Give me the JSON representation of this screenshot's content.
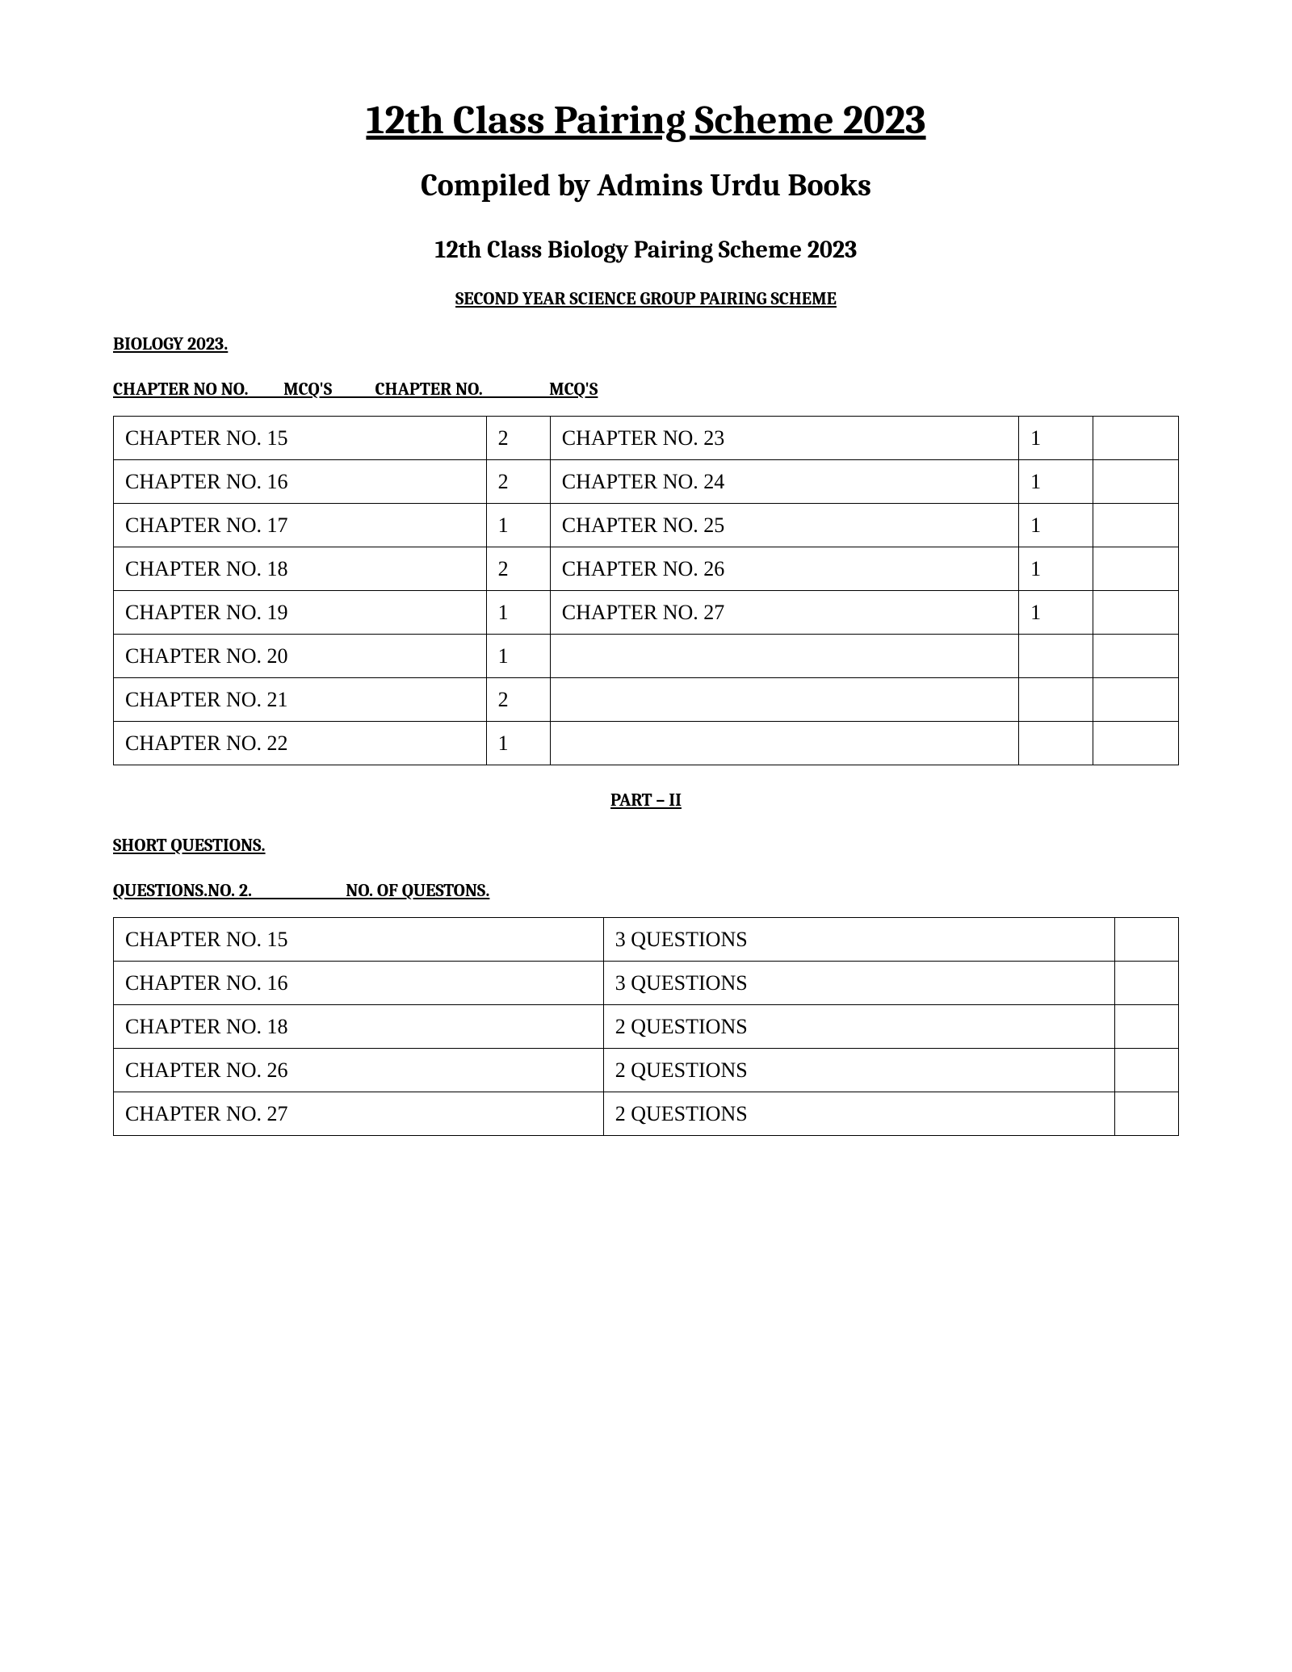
{
  "header": {
    "main_title": "12th Class Pairing Scheme 2023",
    "compiled_by": "Compiled by Admins Urdu Books",
    "subject_title": "12th Class Biology Pairing Scheme 2023",
    "group_title": "SECOND YEAR SCIENCE GROUP PAIRING SCHEME",
    "subject_year": "BIOLOGY   2023.",
    "col_header": "CHAPTER NO NO.         MCQ'S           CHAPTER NO.                 MCQ'S"
  },
  "mcq_table": {
    "rows": [
      {
        "c1": "CHAPTER NO. 15",
        "c2": "2",
        "c3": "CHAPTER NO. 23",
        "c4": "1",
        "c5": ""
      },
      {
        "c1": "CHAPTER NO. 16",
        "c2": "2",
        "c3": "CHAPTER NO. 24",
        "c4": "1",
        "c5": ""
      },
      {
        "c1": "CHAPTER NO. 17",
        "c2": "1",
        "c3": "CHAPTER NO. 25",
        "c4": "1",
        "c5": ""
      },
      {
        "c1": "CHAPTER NO. 18",
        "c2": "2",
        "c3": "CHAPTER NO. 26",
        "c4": "1",
        "c5": ""
      },
      {
        "c1": "CHAPTER NO. 19",
        "c2": "1",
        "c3": "CHAPTER NO. 27",
        "c4": "1",
        "c5": ""
      },
      {
        "c1": "CHAPTER NO. 20",
        "c2": "1",
        "c3": "",
        "c4": "",
        "c5": ""
      },
      {
        "c1": "CHAPTER NO. 21",
        "c2": "2",
        "c3": "",
        "c4": "",
        "c5": ""
      },
      {
        "c1": "CHAPTER NO. 22",
        "c2": "1",
        "c3": "",
        "c4": "",
        "c5": ""
      }
    ]
  },
  "part2": {
    "title": "PART – II",
    "short_q": "SHORT QUESTIONS.",
    "q_header": "QUESTIONS.NO. 2.                        NO. OF QUESTONS."
  },
  "short_table": {
    "rows": [
      {
        "c1": "CHAPTER NO. 15",
        "c2": "3 QUESTIONS",
        "c3": ""
      },
      {
        "c1": "CHAPTER NO. 16",
        "c2": "3 QUESTIONS",
        "c3": ""
      },
      {
        "c1": "CHAPTER NO. 18",
        "c2": "2 QUESTIONS",
        "c3": ""
      },
      {
        "c1": "CHAPTER NO. 26",
        "c2": "2 QUESTIONS",
        "c3": ""
      },
      {
        "c1": "CHAPTER NO. 27",
        "c2": "2 QUESTIONS",
        "c3": ""
      }
    ]
  }
}
